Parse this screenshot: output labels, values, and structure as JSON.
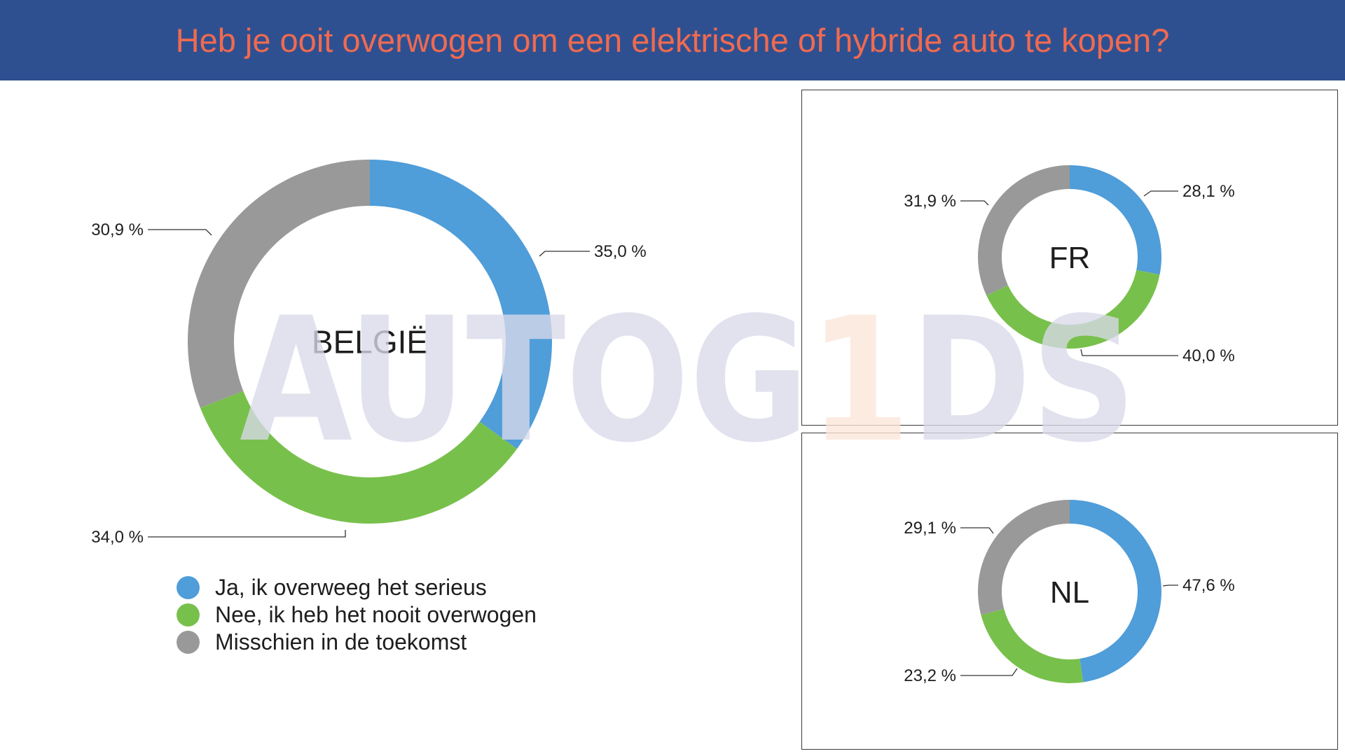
{
  "title": "Heb je ooit overwogen om een elektrische of hybride auto te kopen?",
  "watermark": {
    "prefix": "AUTOG",
    "accent": "1",
    "suffix": "DS"
  },
  "colors": {
    "header_bg": "#2f5090",
    "title": "#f06a50",
    "watermark": "#d8dae9",
    "watermark_accent": "#fbe6d8"
  },
  "legend": [
    {
      "label": "Ja, ik overweeg het serieus",
      "color": "#4f9dd9"
    },
    {
      "label": "Nee, ik heb het nooit overwogen",
      "color": "#78c04c"
    },
    {
      "label": "Misschien in de toekomst",
      "color": "#999999"
    }
  ],
  "chart_data": [
    {
      "type": "pie",
      "subtype": "donut",
      "center_label": "BELGIË",
      "categories": [
        "Ja, ik overweeg het serieus",
        "Nee, ik heb het nooit overwogen",
        "Misschien in de toekomst"
      ],
      "values": [
        35.0,
        34.0,
        30.9
      ],
      "value_labels": [
        "35,0 %",
        "34,0 %",
        "30,9 %"
      ],
      "colors": [
        "#4f9dd9",
        "#78c04c",
        "#999999"
      ]
    },
    {
      "type": "pie",
      "subtype": "donut",
      "center_label": "FR",
      "categories": [
        "Ja, ik overweeg het serieus",
        "Nee, ik heb het nooit overwogen",
        "Misschien in de toekomst"
      ],
      "values": [
        28.1,
        40.0,
        31.9
      ],
      "value_labels": [
        "28,1 %",
        "40,0 %",
        "31,9 %"
      ],
      "colors": [
        "#4f9dd9",
        "#78c04c",
        "#999999"
      ]
    },
    {
      "type": "pie",
      "subtype": "donut",
      "center_label": "NL",
      "categories": [
        "Ja, ik overweeg het serieus",
        "Nee, ik heb het nooit overwogen",
        "Misschien in de toekomst"
      ],
      "values": [
        47.6,
        23.2,
        29.1
      ],
      "value_labels": [
        "47,6 %",
        "23,2 %",
        "29,1 %"
      ],
      "colors": [
        "#4f9dd9",
        "#78c04c",
        "#999999"
      ]
    }
  ]
}
